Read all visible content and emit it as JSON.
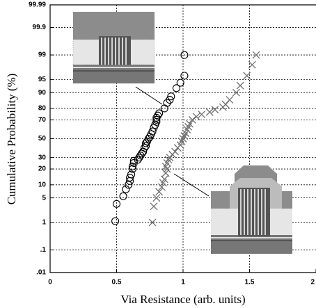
{
  "chart_data": {
    "type": "scatter",
    "x_label": "Via Resistance (arb. units)",
    "y_label": "Cumulative Probability (%)",
    "y_scale": "probit",
    "grid": true,
    "xlim": [
      0,
      2
    ],
    "xticks": [
      0,
      0.5,
      1,
      1.5,
      2
    ],
    "ylim": [
      0.01,
      99.99
    ],
    "yticks": [
      {
        "value": 0.01,
        "label": ".01"
      },
      {
        "value": 0.1,
        "label": ".1"
      },
      1,
      5,
      10,
      20,
      30,
      50,
      70,
      80,
      90,
      95,
      99,
      99.9,
      99.99
    ],
    "series": [
      {
        "marker": "o",
        "color": "#000000",
        "x": [
          0.49,
          0.5,
          0.55,
          0.57,
          0.59,
          0.6,
          0.6,
          0.61,
          0.62,
          0.62,
          0.63,
          0.63,
          0.66,
          0.67,
          0.68,
          0.69,
          0.7,
          0.71,
          0.72,
          0.72,
          0.73,
          0.74,
          0.75,
          0.76,
          0.77,
          0.78,
          0.79,
          0.8,
          0.8,
          0.8,
          0.81,
          0.82,
          0.86,
          0.88,
          0.9,
          0.91,
          0.95,
          0.98,
          1.01,
          1.01
        ],
        "values": [
          1.1,
          3.5,
          5.5,
          8,
          10,
          12,
          14,
          16,
          20,
          22,
          25,
          27,
          28,
          30,
          32,
          34,
          36,
          40,
          42,
          45,
          47,
          50,
          52,
          55,
          58,
          62,
          65,
          68,
          70,
          72,
          74,
          76,
          80,
          84,
          86,
          88,
          92,
          94,
          96,
          99
        ]
      },
      {
        "marker": "x",
        "color": "#707070",
        "x": [
          0.77,
          0.78,
          0.8,
          0.82,
          0.84,
          0.85,
          0.86,
          0.87,
          0.88,
          0.87,
          0.88,
          0.89,
          0.9,
          0.92,
          0.94,
          0.96,
          0.98,
          0.99,
          1.0,
          1.01,
          1.02,
          1.03,
          1.04,
          1.05,
          1.07,
          1.1,
          1.14,
          1.2,
          1.24,
          1.3,
          1.32,
          1.35,
          1.4,
          1.43,
          1.48,
          1.52,
          1.55
        ],
        "values": [
          1,
          3,
          5,
          7,
          9,
          11,
          13,
          17,
          20,
          22,
          25,
          28,
          30,
          33,
          36,
          40,
          43,
          47,
          50,
          53,
          56,
          60,
          63,
          66,
          70,
          73,
          75,
          77,
          79,
          81,
          83,
          86,
          90,
          93,
          96,
          98,
          99
        ]
      }
    ]
  }
}
